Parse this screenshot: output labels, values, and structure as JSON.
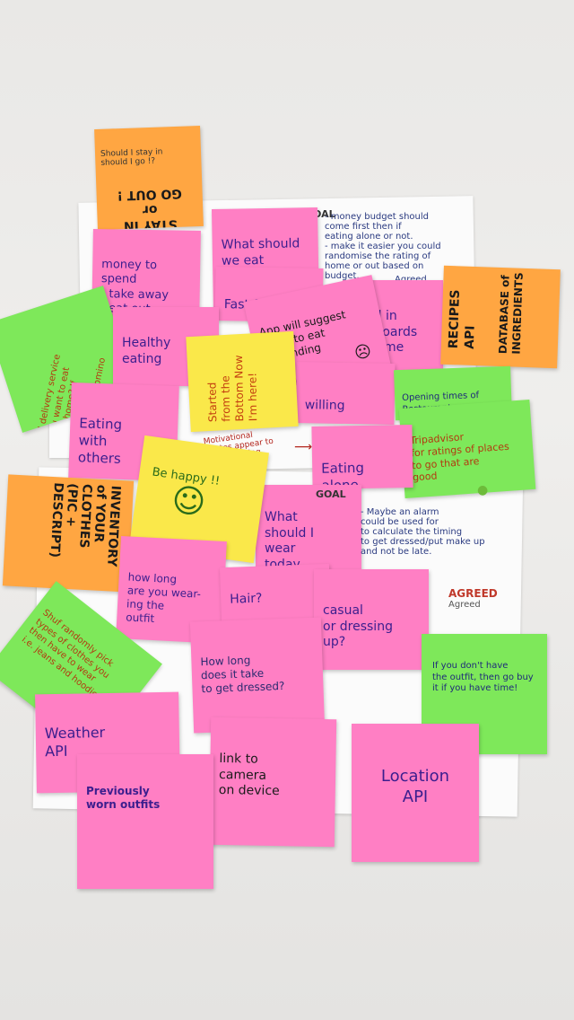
{
  "notes": {
    "stay_go_top": "Should I stay in\nshould I go !?",
    "stay_go_main": "STAY IN\nor\nGO OUT !",
    "goal1": "GOAL",
    "what_eat": "What should\nwe eat\ntonight?",
    "money_budget": "- money budget should\n  come first then if\n  eating alone or not.\n- make it easier you could\n  randomise the rating of\n  home or out based on\n  budget.",
    "agreed_small": "Agreed",
    "money_spend": "money to\nspend\n- take away\n- eat out",
    "fast_food": "Fast food",
    "food_cupboards": "Food in\ncupboards\nat home",
    "recipes_api": "RECIPES\nAPI",
    "database_ingredients": "DATABASE of\nINGREDIENTS",
    "food_delivery": "Food delivery service\ndo you want to eat\nin your home? If\nnot? then\nthe delivery is Domino",
    "healthy_eating": "Healthy\neating",
    "app_suggest": "App will suggest\nplace to eat\ndepending\nyour\nbudget.",
    "started_bottom": "Started\nfrom the\nBottom Now\nI'm here!",
    "willing": "willing",
    "opening_times": "Opening times of\nRestaurants",
    "tripadvisor": "Tripadvisor\nfor ratings of places\nto go that are\ngood",
    "eating_others": "Eating\nwith\nothers",
    "motivational": "Motivational\nquotes appear to\nreduce crying",
    "eating_alone": "Eating\nalone",
    "be_happy": "Be happy !!",
    "inventory_clothes": "INVENTORY\nof YOUR\nCLOTHES\n(PIC + DESCRIPT)",
    "goal2": "GOAL",
    "what_wear": "What\nshould I\nwear\ntoday",
    "alarm_note": "- Maybe an alarm\n  could be used for\n  to calculate the timing\n  to get dressed/put make up\n  and not be late.",
    "agreed_big": "AGREED",
    "agreed_small2": "Agreed",
    "how_long_wearing": "how long\nare you wear-\ning the\noutfit",
    "hair": "Hair?",
    "casual_dressing": "casual\nor dressing\nup?",
    "random_pick": "Shuf randomly pick\ntypes of clothes you\nthen have to wear\ni.e. jeans and hoodie",
    "how_long_dressed": "How long\ndoes it take\nto get dressed?",
    "outfit_note": "If you don't have\nthe outfit, then go buy\nit if you have time!",
    "weather_api": "Weather\nAPI",
    "link_camera": "link to\ncamera\non device",
    "location_api": "Location\nAPI",
    "previously_worn": "Previously\nworn outfits"
  },
  "colors": {
    "pink": "#ff7fc4",
    "green": "#7ee85a",
    "orange": "#ffa642",
    "yellow": "#fae84a",
    "paper": "#fbfbfb",
    "table": "#ecebe9",
    "ink_purple": "#3b1e8e",
    "ink_red": "#c0392b"
  },
  "icons": [
    "smiley-icon",
    "sad-face-icon",
    "arrow-icon",
    "green-dot-icon"
  ]
}
